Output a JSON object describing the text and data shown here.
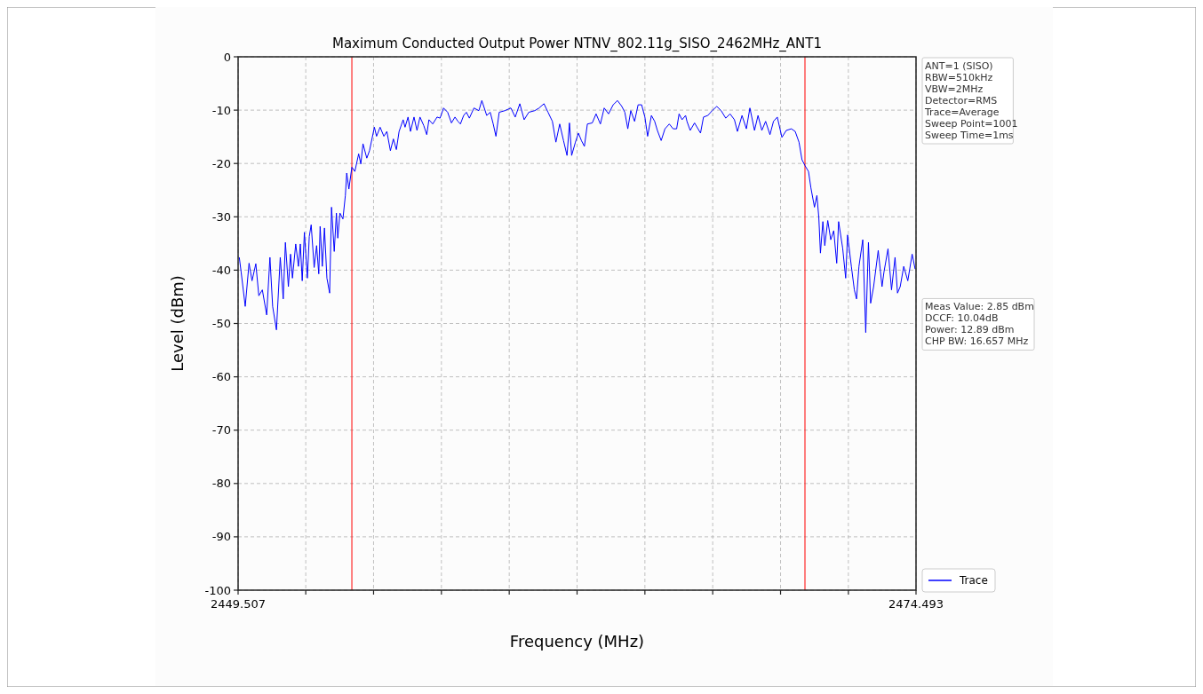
{
  "chart_data": {
    "type": "line",
    "title": "Maximum Conducted Output Power NTNV_802.11g_SISO_2462MHz_ANT1",
    "xlabel": "Frequency (MHz)",
    "ylabel": "Level (dBm)",
    "xlim": [
      2449.507,
      2474.493
    ],
    "ylim": [
      -100,
      0
    ],
    "xticks": [
      2449.507,
      {
        "value": 2452,
        "label": null
      },
      {
        "value": 2454.5,
        "label": null
      },
      {
        "value": 2457,
        "label": null
      },
      {
        "value": 2459.5,
        "label": null
      },
      {
        "value": 2462,
        "label": null
      },
      {
        "value": 2464.5,
        "label": null
      },
      {
        "value": 2467,
        "label": null
      },
      {
        "value": 2469.5,
        "label": null
      },
      {
        "value": 2472,
        "label": null
      },
      2474.493
    ],
    "yticks": [
      0,
      -10,
      -20,
      -30,
      -40,
      -50,
      -60,
      -70,
      -80,
      -90,
      -100
    ],
    "grid": true,
    "legend": "bottom right",
    "marker": "none",
    "line_style": "solid",
    "ref_lines": [
      {
        "axis": "x",
        "value": 2453.7,
        "color": "#ff0000"
      },
      {
        "axis": "x",
        "value": 2470.4,
        "color": "#ff0000"
      }
    ],
    "annotations": [
      "ANT=1 (SISO)\nRBW=510kHz\nVBW=2MHz\nDetector=RMS\nTrace=Average\nSweep Point=1001\nSweep Time=1ms",
      "Meas Value: 2.85 dBm\nDCCF: 10.04dB\nPower: 12.89 dBm\nCHP BW: 16.657 MHz"
    ],
    "series": [
      {
        "name": "Trace",
        "color": "#0000ff",
        "x": [
          2449.55,
          2449.62,
          2449.77,
          2449.91,
          2450.02,
          2450.16,
          2450.27,
          2450.4,
          2450.56,
          2450.68,
          2450.78,
          2450.92,
          2451.06,
          2451.17,
          2451.25,
          2451.36,
          2451.44,
          2451.51,
          2451.63,
          2451.73,
          2451.8,
          2451.87,
          2451.95,
          2452.06,
          2452.13,
          2452.2,
          2452.31,
          2452.4,
          2452.48,
          2452.53,
          2452.61,
          2452.69,
          2452.78,
          2452.88,
          2452.95,
          2453.05,
          2453.13,
          2453.18,
          2453.26,
          2453.37,
          2453.46,
          2453.51,
          2453.59,
          2453.7,
          2453.81,
          2453.95,
          2454.03,
          2454.11,
          2454.25,
          2454.35,
          2454.53,
          2454.61,
          2454.74,
          2454.88,
          2454.99,
          2455.12,
          2455.23,
          2455.34,
          2455.44,
          2455.59,
          2455.66,
          2455.77,
          2455.86,
          2455.99,
          2456.1,
          2456.21,
          2456.35,
          2456.46,
          2456.54,
          2456.68,
          2456.84,
          2456.95,
          2457.08,
          2457.23,
          2457.37,
          2457.5,
          2457.61,
          2457.7,
          2457.82,
          2457.92,
          2458.03,
          2458.2,
          2458.38,
          2458.49,
          2458.67,
          2458.8,
          2458.91,
          2459.01,
          2459.13,
          2459.34,
          2459.56,
          2459.72,
          2459.89,
          2460.05,
          2460.22,
          2460.44,
          2460.6,
          2460.78,
          2460.93,
          2461.09,
          2461.22,
          2461.36,
          2461.5,
          2461.63,
          2461.72,
          2461.8,
          2461.94,
          2462.05,
          2462.16,
          2462.27,
          2462.38,
          2462.56,
          2462.7,
          2462.86,
          2463.0,
          2463.16,
          2463.33,
          2463.49,
          2463.65,
          2463.76,
          2463.87,
          2463.98,
          2464.12,
          2464.25,
          2464.38,
          2464.5,
          2464.6,
          2464.74,
          2464.86,
          2464.96,
          2465.1,
          2465.24,
          2465.4,
          2465.54,
          2465.67,
          2465.76,
          2465.87,
          2466.0,
          2466.05,
          2466.17,
          2466.33,
          2466.55,
          2466.66,
          2466.82,
          2466.98,
          2467.15,
          2467.31,
          2467.48,
          2467.64,
          2467.8,
          2467.91,
          2468.08,
          2468.24,
          2468.37,
          2468.54,
          2468.67,
          2468.81,
          2468.95,
          2469.11,
          2469.24,
          2469.38,
          2469.55,
          2469.71,
          2469.9,
          2470.04,
          2470.18,
          2470.29,
          2470.4,
          2470.53,
          2470.62,
          2470.75,
          2470.84,
          2470.91,
          2470.97,
          2471.06,
          2471.13,
          2471.24,
          2471.35,
          2471.46,
          2471.57,
          2471.64,
          2471.79,
          2471.9,
          2471.97,
          2472.11,
          2472.22,
          2472.3,
          2472.39,
          2472.53,
          2472.64,
          2472.74,
          2472.82,
          2472.93,
          2473.1,
          2473.24,
          2473.31,
          2473.46,
          2473.59,
          2473.72,
          2473.81,
          2473.91,
          2474.04,
          2474.19,
          2474.35,
          2474.46
        ],
        "values": [
          -37.6,
          -40.4,
          -46.8,
          -38.7,
          -42.0,
          -38.8,
          -44.8,
          -43.7,
          -48.4,
          -37.6,
          -46.8,
          -51.2,
          -37.6,
          -45.4,
          -34.8,
          -43.1,
          -37.0,
          -41.5,
          -35.1,
          -39.3,
          -35.1,
          -42.0,
          -32.9,
          -41.5,
          -33.7,
          -31.5,
          -39.5,
          -35.4,
          -40.7,
          -31.8,
          -39.3,
          -32.1,
          -41.5,
          -44.3,
          -28.2,
          -36.5,
          -29.3,
          -34.0,
          -29.3,
          -30.4,
          -26.0,
          -21.8,
          -24.8,
          -20.7,
          -21.5,
          -18.2,
          -20.1,
          -16.3,
          -19.0,
          -17.6,
          -13.2,
          -14.9,
          -13.2,
          -14.9,
          -14.0,
          -17.6,
          -15.4,
          -17.4,
          -14.0,
          -11.8,
          -13.2,
          -11.3,
          -14.0,
          -11.3,
          -13.8,
          -11.3,
          -12.9,
          -14.6,
          -11.8,
          -12.6,
          -11.3,
          -11.5,
          -9.6,
          -10.4,
          -12.4,
          -11.3,
          -12.1,
          -12.6,
          -11.0,
          -10.4,
          -11.5,
          -9.6,
          -10.1,
          -8.2,
          -11.0,
          -10.4,
          -12.6,
          -14.9,
          -10.4,
          -10.1,
          -9.6,
          -11.3,
          -8.8,
          -11.8,
          -10.4,
          -10.1,
          -9.6,
          -8.8,
          -10.4,
          -12.1,
          -16.0,
          -12.6,
          -15.7,
          -18.5,
          -12.4,
          -18.5,
          -16.0,
          -14.3,
          -15.7,
          -16.8,
          -12.6,
          -12.4,
          -10.7,
          -12.6,
          -9.6,
          -10.7,
          -9.0,
          -8.2,
          -9.3,
          -10.4,
          -13.5,
          -10.1,
          -12.1,
          -9.0,
          -9.0,
          -11.3,
          -14.9,
          -11.0,
          -12.1,
          -13.8,
          -15.7,
          -13.5,
          -12.6,
          -13.5,
          -13.5,
          -10.7,
          -11.8,
          -11.0,
          -12.1,
          -13.8,
          -12.4,
          -14.3,
          -11.3,
          -11.0,
          -10.1,
          -9.3,
          -10.1,
          -11.5,
          -10.7,
          -11.8,
          -14.0,
          -11.0,
          -13.5,
          -9.6,
          -13.8,
          -11.0,
          -13.8,
          -12.1,
          -14.6,
          -12.1,
          -11.3,
          -15.1,
          -13.8,
          -13.5,
          -14.0,
          -16.0,
          -19.3,
          -20.4,
          -21.5,
          -24.6,
          -28.2,
          -26.0,
          -30.1,
          -36.8,
          -30.9,
          -35.4,
          -30.7,
          -34.3,
          -32.6,
          -38.7,
          -30.9,
          -35.9,
          -41.5,
          -33.4,
          -39.3,
          -43.7,
          -45.4,
          -39.3,
          -34.3,
          -51.7,
          -34.8,
          -46.2,
          -43.1,
          -36.3,
          -43.1,
          -40.4,
          -36.0,
          -43.7,
          -37.6,
          -44.3,
          -43.1,
          -39.3,
          -42.0,
          -37.0,
          -39.8
        ]
      }
    ]
  }
}
